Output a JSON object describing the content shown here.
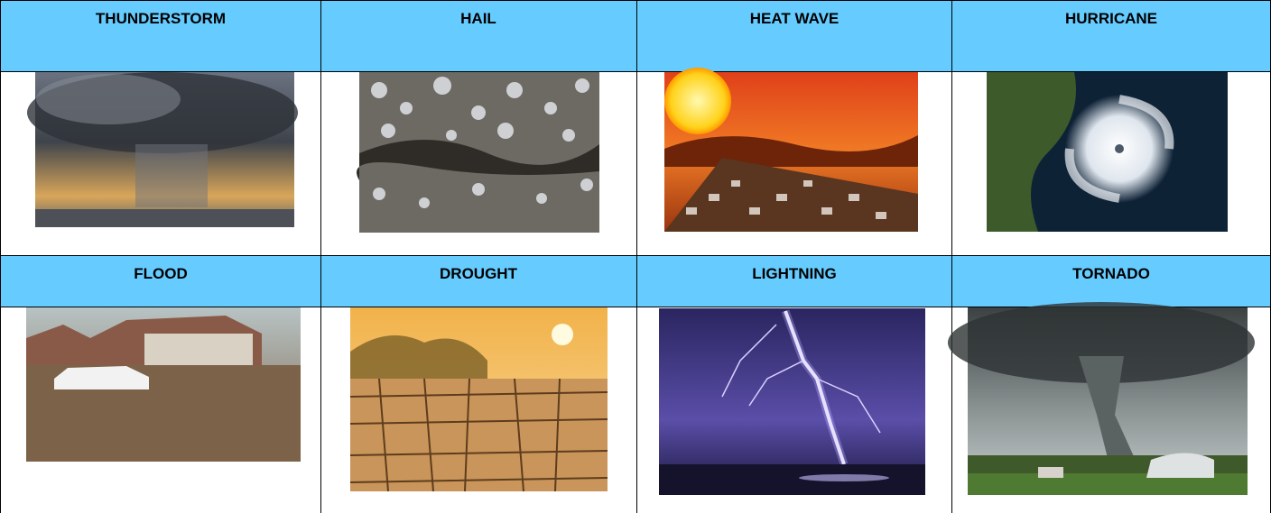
{
  "table": {
    "rows": [
      [
        "THUNDERSTORM",
        "HAIL",
        "HEAT WAVE",
        "HURRICANE"
      ],
      [
        "FLOOD",
        "DROUGHT",
        "LIGHTNING",
        "TORNADO"
      ]
    ]
  }
}
